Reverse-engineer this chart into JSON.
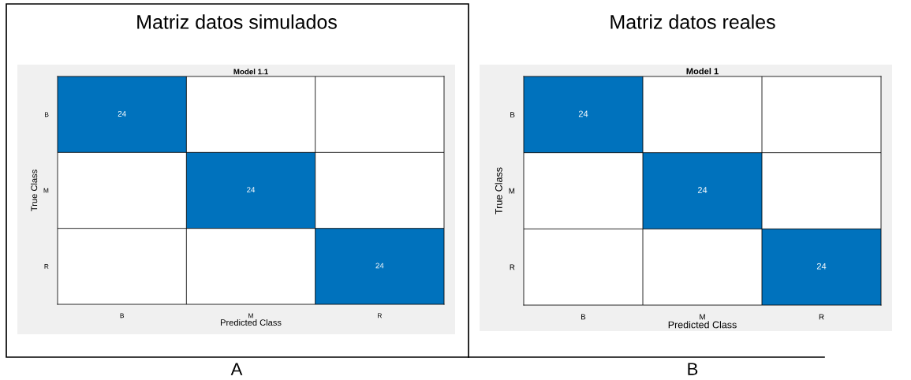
{
  "chart_data": [
    {
      "type": "heatmap",
      "title": "Matriz datos simulados",
      "subtitle": "Model 1.1",
      "xlabel": "Predicted Class",
      "ylabel": "True Class",
      "categories": [
        "B",
        "M",
        "R"
      ],
      "y_categories": [
        "B",
        "M",
        "R"
      ],
      "cells": [
        [
          24,
          null,
          null
        ],
        [
          null,
          24,
          null
        ],
        [
          null,
          null,
          24
        ]
      ],
      "color": "#0072bd",
      "data_labels": true,
      "annotations": [
        "A"
      ]
    },
    {
      "type": "heatmap",
      "title": "Matriz datos reales",
      "subtitle": "Model 1",
      "xlabel": "Predicted Class",
      "ylabel": "True Class",
      "categories": [
        "B",
        "M",
        "R"
      ],
      "y_categories": [
        "B",
        "M",
        "R"
      ],
      "cells": [
        [
          24,
          null,
          null
        ],
        [
          null,
          24,
          null
        ],
        [
          null,
          null,
          24
        ]
      ],
      "color": "#0072bd",
      "data_labels": true,
      "annotations": [
        "B"
      ]
    }
  ]
}
